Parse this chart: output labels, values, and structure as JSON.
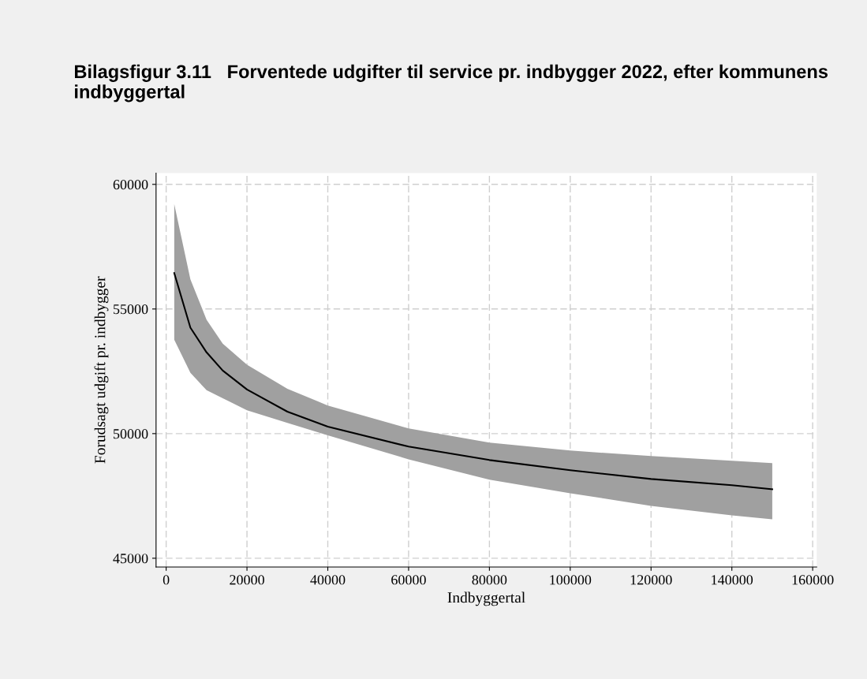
{
  "chart_data": {
    "type": "line",
    "title": "Bilagsfigur 3.11   Forventede udgifter til service pr. indbygger 2022, efter kommunens indbyggertal",
    "xlabel": "Indbyggertal",
    "ylabel": "Forudsagt udgift pr. indbygger",
    "x": [
      2000,
      6000,
      10000,
      14000,
      20000,
      30000,
      40000,
      60000,
      80000,
      100000,
      120000,
      140000,
      150000
    ],
    "series": [
      {
        "color": "#000000",
        "values": [
          56440,
          54250,
          53260,
          52530,
          51770,
          50880,
          50280,
          49480,
          48940,
          48530,
          48180,
          47930,
          47770
        ],
        "lower": [
          53770,
          52440,
          51740,
          51420,
          50940,
          50430,
          49930,
          48970,
          48150,
          47610,
          47100,
          46720,
          46560
        ],
        "upper": [
          59210,
          56190,
          54570,
          53610,
          52760,
          51800,
          51130,
          50210,
          49640,
          49320,
          49100,
          48910,
          48820
        ]
      }
    ],
    "xlim": [
      -2500,
      161000
    ],
    "ylim": [
      44650,
      60450
    ],
    "xticks": [
      0,
      20000,
      40000,
      60000,
      80000,
      100000,
      120000,
      140000,
      160000
    ],
    "yticks": [
      45000,
      50000,
      55000,
      60000
    ],
    "grid": true,
    "line_style": "solid",
    "marker": "none"
  }
}
